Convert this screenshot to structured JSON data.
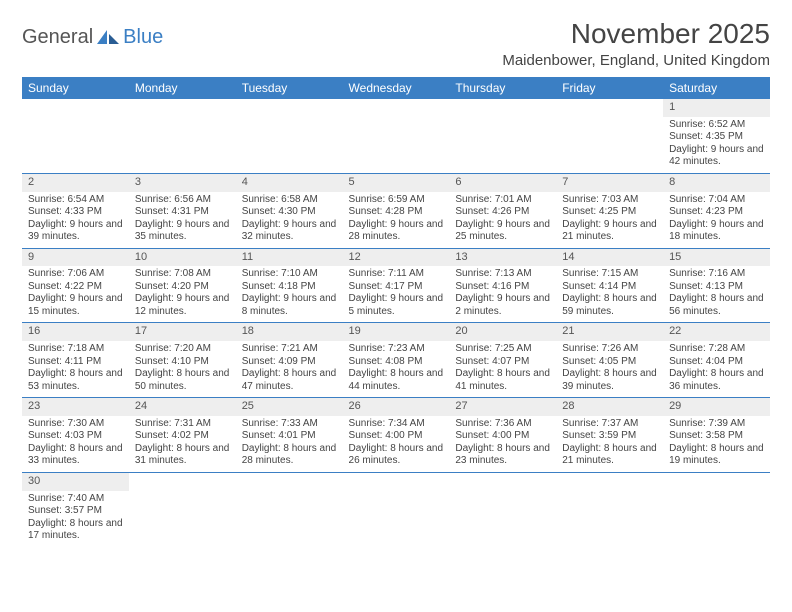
{
  "brand": {
    "part1": "General",
    "part2": "Blue"
  },
  "title": "November 2025",
  "location": "Maidenbower, England, United Kingdom",
  "colors": {
    "header_bg": "#3b7fc4",
    "header_text": "#ffffff",
    "daynum_bg": "#eeeeee",
    "row_border": "#3b7fc4",
    "text": "#444444",
    "page_bg": "#ffffff"
  },
  "weekdays": [
    "Sunday",
    "Monday",
    "Tuesday",
    "Wednesday",
    "Thursday",
    "Friday",
    "Saturday"
  ],
  "weeks": [
    [
      {
        "d": "",
        "r": "",
        "s": "",
        "l": ""
      },
      {
        "d": "",
        "r": "",
        "s": "",
        "l": ""
      },
      {
        "d": "",
        "r": "",
        "s": "",
        "l": ""
      },
      {
        "d": "",
        "r": "",
        "s": "",
        "l": ""
      },
      {
        "d": "",
        "r": "",
        "s": "",
        "l": ""
      },
      {
        "d": "",
        "r": "",
        "s": "",
        "l": ""
      },
      {
        "d": "1",
        "r": "Sunrise: 6:52 AM",
        "s": "Sunset: 4:35 PM",
        "l": "Daylight: 9 hours and 42 minutes."
      }
    ],
    [
      {
        "d": "2",
        "r": "Sunrise: 6:54 AM",
        "s": "Sunset: 4:33 PM",
        "l": "Daylight: 9 hours and 39 minutes."
      },
      {
        "d": "3",
        "r": "Sunrise: 6:56 AM",
        "s": "Sunset: 4:31 PM",
        "l": "Daylight: 9 hours and 35 minutes."
      },
      {
        "d": "4",
        "r": "Sunrise: 6:58 AM",
        "s": "Sunset: 4:30 PM",
        "l": "Daylight: 9 hours and 32 minutes."
      },
      {
        "d": "5",
        "r": "Sunrise: 6:59 AM",
        "s": "Sunset: 4:28 PM",
        "l": "Daylight: 9 hours and 28 minutes."
      },
      {
        "d": "6",
        "r": "Sunrise: 7:01 AM",
        "s": "Sunset: 4:26 PM",
        "l": "Daylight: 9 hours and 25 minutes."
      },
      {
        "d": "7",
        "r": "Sunrise: 7:03 AM",
        "s": "Sunset: 4:25 PM",
        "l": "Daylight: 9 hours and 21 minutes."
      },
      {
        "d": "8",
        "r": "Sunrise: 7:04 AM",
        "s": "Sunset: 4:23 PM",
        "l": "Daylight: 9 hours and 18 minutes."
      }
    ],
    [
      {
        "d": "9",
        "r": "Sunrise: 7:06 AM",
        "s": "Sunset: 4:22 PM",
        "l": "Daylight: 9 hours and 15 minutes."
      },
      {
        "d": "10",
        "r": "Sunrise: 7:08 AM",
        "s": "Sunset: 4:20 PM",
        "l": "Daylight: 9 hours and 12 minutes."
      },
      {
        "d": "11",
        "r": "Sunrise: 7:10 AM",
        "s": "Sunset: 4:18 PM",
        "l": "Daylight: 9 hours and 8 minutes."
      },
      {
        "d": "12",
        "r": "Sunrise: 7:11 AM",
        "s": "Sunset: 4:17 PM",
        "l": "Daylight: 9 hours and 5 minutes."
      },
      {
        "d": "13",
        "r": "Sunrise: 7:13 AM",
        "s": "Sunset: 4:16 PM",
        "l": "Daylight: 9 hours and 2 minutes."
      },
      {
        "d": "14",
        "r": "Sunrise: 7:15 AM",
        "s": "Sunset: 4:14 PM",
        "l": "Daylight: 8 hours and 59 minutes."
      },
      {
        "d": "15",
        "r": "Sunrise: 7:16 AM",
        "s": "Sunset: 4:13 PM",
        "l": "Daylight: 8 hours and 56 minutes."
      }
    ],
    [
      {
        "d": "16",
        "r": "Sunrise: 7:18 AM",
        "s": "Sunset: 4:11 PM",
        "l": "Daylight: 8 hours and 53 minutes."
      },
      {
        "d": "17",
        "r": "Sunrise: 7:20 AM",
        "s": "Sunset: 4:10 PM",
        "l": "Daylight: 8 hours and 50 minutes."
      },
      {
        "d": "18",
        "r": "Sunrise: 7:21 AM",
        "s": "Sunset: 4:09 PM",
        "l": "Daylight: 8 hours and 47 minutes."
      },
      {
        "d": "19",
        "r": "Sunrise: 7:23 AM",
        "s": "Sunset: 4:08 PM",
        "l": "Daylight: 8 hours and 44 minutes."
      },
      {
        "d": "20",
        "r": "Sunrise: 7:25 AM",
        "s": "Sunset: 4:07 PM",
        "l": "Daylight: 8 hours and 41 minutes."
      },
      {
        "d": "21",
        "r": "Sunrise: 7:26 AM",
        "s": "Sunset: 4:05 PM",
        "l": "Daylight: 8 hours and 39 minutes."
      },
      {
        "d": "22",
        "r": "Sunrise: 7:28 AM",
        "s": "Sunset: 4:04 PM",
        "l": "Daylight: 8 hours and 36 minutes."
      }
    ],
    [
      {
        "d": "23",
        "r": "Sunrise: 7:30 AM",
        "s": "Sunset: 4:03 PM",
        "l": "Daylight: 8 hours and 33 minutes."
      },
      {
        "d": "24",
        "r": "Sunrise: 7:31 AM",
        "s": "Sunset: 4:02 PM",
        "l": "Daylight: 8 hours and 31 minutes."
      },
      {
        "d": "25",
        "r": "Sunrise: 7:33 AM",
        "s": "Sunset: 4:01 PM",
        "l": "Daylight: 8 hours and 28 minutes."
      },
      {
        "d": "26",
        "r": "Sunrise: 7:34 AM",
        "s": "Sunset: 4:00 PM",
        "l": "Daylight: 8 hours and 26 minutes."
      },
      {
        "d": "27",
        "r": "Sunrise: 7:36 AM",
        "s": "Sunset: 4:00 PM",
        "l": "Daylight: 8 hours and 23 minutes."
      },
      {
        "d": "28",
        "r": "Sunrise: 7:37 AM",
        "s": "Sunset: 3:59 PM",
        "l": "Daylight: 8 hours and 21 minutes."
      },
      {
        "d": "29",
        "r": "Sunrise: 7:39 AM",
        "s": "Sunset: 3:58 PM",
        "l": "Daylight: 8 hours and 19 minutes."
      }
    ],
    [
      {
        "d": "30",
        "r": "Sunrise: 7:40 AM",
        "s": "Sunset: 3:57 PM",
        "l": "Daylight: 8 hours and 17 minutes."
      },
      {
        "d": "",
        "r": "",
        "s": "",
        "l": ""
      },
      {
        "d": "",
        "r": "",
        "s": "",
        "l": ""
      },
      {
        "d": "",
        "r": "",
        "s": "",
        "l": ""
      },
      {
        "d": "",
        "r": "",
        "s": "",
        "l": ""
      },
      {
        "d": "",
        "r": "",
        "s": "",
        "l": ""
      },
      {
        "d": "",
        "r": "",
        "s": "",
        "l": ""
      }
    ]
  ]
}
